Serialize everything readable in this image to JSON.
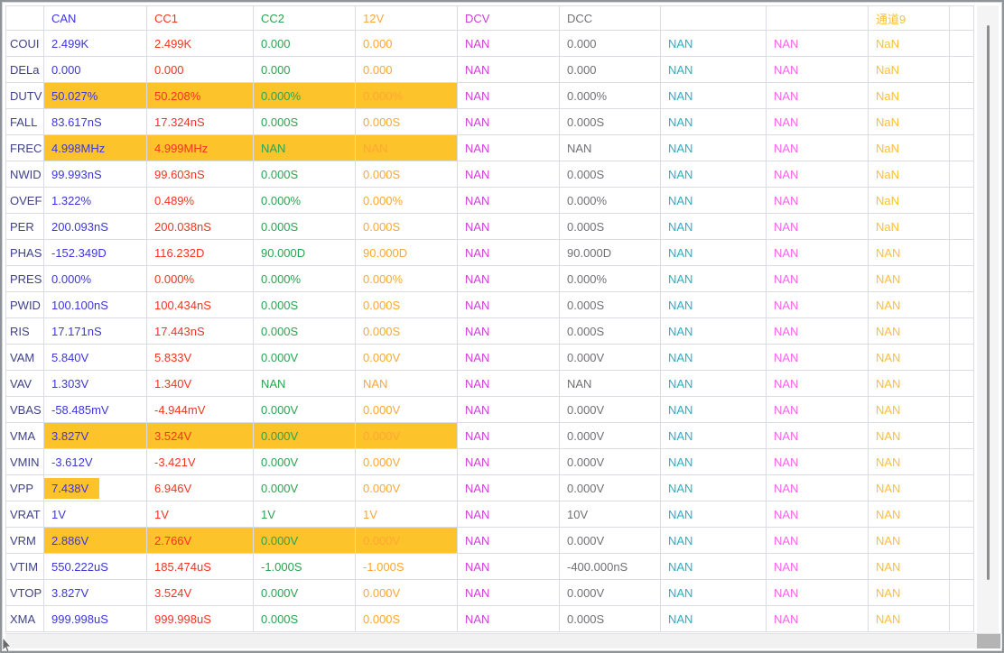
{
  "colors": {
    "highlight": "#fdc32b",
    "gridline": "#d9dce0",
    "row_label": "#3f4287",
    "columns": [
      "#3c36dd",
      "#f5341f",
      "#2aa44f",
      "#ffa733",
      "#cf3ed8",
      "#726f75",
      "#2fadc0",
      "#f863ea",
      "#fbbf3a"
    ]
  },
  "header": {
    "labels": [
      "CAN",
      "CC1",
      "CC2",
      "12V",
      "DCV",
      "DCC",
      "",
      "",
      "通道9"
    ]
  },
  "rows": [
    {
      "label": "COUI",
      "hl": "",
      "cells": [
        "2.499K",
        "2.499K",
        "0.000",
        "0.000",
        "NAN",
        "0.000",
        "NAN",
        "NAN",
        "NaN"
      ]
    },
    {
      "label": "DELa",
      "hl": "",
      "cells": [
        "0.000",
        "0.000",
        "0.000",
        "0.000",
        "NAN",
        "0.000",
        "NAN",
        "NAN",
        "NaN"
      ]
    },
    {
      "label": "DUTV",
      "hl": "first4",
      "cells": [
        "50.027%",
        "50.208%",
        "0.000%",
        "0.000%",
        "NAN",
        "0.000%",
        "NAN",
        "NAN",
        "NaN"
      ]
    },
    {
      "label": "FALL",
      "hl": "",
      "cells": [
        "83.617nS",
        "17.324nS",
        "0.000S",
        "0.000S",
        "NAN",
        "0.000S",
        "NAN",
        "NAN",
        "NaN"
      ]
    },
    {
      "label": "FREC",
      "hl": "first4",
      "cells": [
        "4.998MHz",
        "4.999MHz",
        "NAN",
        "NAN",
        "NAN",
        "NAN",
        "NAN",
        "NAN",
        "NaN"
      ]
    },
    {
      "label": "NWID",
      "hl": "",
      "cells": [
        "99.993nS",
        "99.603nS",
        "0.000S",
        "0.000S",
        "NAN",
        "0.000S",
        "NAN",
        "NAN",
        "NaN"
      ]
    },
    {
      "label": "OVEF",
      "hl": "",
      "cells": [
        "1.322%",
        "0.489%",
        "0.000%",
        "0.000%",
        "NAN",
        "0.000%",
        "NAN",
        "NAN",
        "NaN"
      ]
    },
    {
      "label": "PER",
      "hl": "",
      "cells": [
        "200.093nS",
        "200.038nS",
        "0.000S",
        "0.000S",
        "NAN",
        "0.000S",
        "NAN",
        "NAN",
        "NaN"
      ]
    },
    {
      "label": "PHAS",
      "hl": "",
      "cells": [
        "-152.349D",
        "116.232D",
        "90.000D",
        "90.000D",
        "NAN",
        "90.000D",
        "NAN",
        "NAN",
        "NAN"
      ]
    },
    {
      "label": "PRES",
      "hl": "",
      "cells": [
        "0.000%",
        "0.000%",
        "0.000%",
        "0.000%",
        "NAN",
        "0.000%",
        "NAN",
        "NAN",
        "NAN"
      ]
    },
    {
      "label": "PWID",
      "hl": "",
      "cells": [
        "100.100nS",
        "100.434nS",
        "0.000S",
        "0.000S",
        "NAN",
        "0.000S",
        "NAN",
        "NAN",
        "NAN"
      ]
    },
    {
      "label": "RIS",
      "hl": "",
      "cells": [
        "17.171nS",
        "17.443nS",
        "0.000S",
        "0.000S",
        "NAN",
        "0.000S",
        "NAN",
        "NAN",
        "NAN"
      ]
    },
    {
      "label": "VAM",
      "hl": "",
      "cells": [
        "5.840V",
        "5.833V",
        "0.000V",
        "0.000V",
        "NAN",
        "0.000V",
        "NAN",
        "NAN",
        "NAN"
      ]
    },
    {
      "label": "VAV",
      "hl": "",
      "cells": [
        "1.303V",
        "1.340V",
        "NAN",
        "NAN",
        "NAN",
        "NAN",
        "NAN",
        "NAN",
        "NAN"
      ]
    },
    {
      "label": "VBAS",
      "hl": "",
      "cells": [
        "-58.485mV",
        "-4.944mV",
        "0.000V",
        "0.000V",
        "NAN",
        "0.000V",
        "NAN",
        "NAN",
        "NAN"
      ]
    },
    {
      "label": "VMA",
      "hl": "first4",
      "cells": [
        "3.827V",
        "3.524V",
        "0.000V",
        "0.000V",
        "NAN",
        "0.000V",
        "NAN",
        "NAN",
        "NAN"
      ]
    },
    {
      "label": "VMIN",
      "hl": "",
      "cells": [
        "-3.612V",
        "-3.421V",
        "0.000V",
        "0.000V",
        "NAN",
        "0.000V",
        "NAN",
        "NAN",
        "NAN"
      ]
    },
    {
      "label": "VPP",
      "hl": "text0",
      "cells": [
        "7.438V",
        "6.946V",
        "0.000V",
        "0.000V",
        "NAN",
        "0.000V",
        "NAN",
        "NAN",
        "NAN"
      ]
    },
    {
      "label": "VRAT",
      "hl": "",
      "cells": [
        "1V",
        "1V",
        "1V",
        "1V",
        "NAN",
        "10V",
        "NAN",
        "NAN",
        "NAN"
      ]
    },
    {
      "label": "VRM",
      "hl": "first4",
      "cells": [
        "2.886V",
        "2.766V",
        "0.000V",
        "0.000V",
        "NAN",
        "0.000V",
        "NAN",
        "NAN",
        "NAN"
      ]
    },
    {
      "label": "VTIM",
      "hl": "",
      "cells": [
        "550.222uS",
        "185.474uS",
        "-1.000S",
        "-1.000S",
        "NAN",
        "-400.000nS",
        "NAN",
        "NAN",
        "NAN"
      ]
    },
    {
      "label": "VTOP",
      "hl": "",
      "cells": [
        "3.827V",
        "3.524V",
        "0.000V",
        "0.000V",
        "NAN",
        "0.000V",
        "NAN",
        "NAN",
        "NAN"
      ]
    },
    {
      "label": "XMA",
      "hl": "",
      "cells": [
        "999.998uS",
        "999.998uS",
        "0.000S",
        "0.000S",
        "NAN",
        "0.000S",
        "NAN",
        "NAN",
        "NAN"
      ]
    }
  ]
}
